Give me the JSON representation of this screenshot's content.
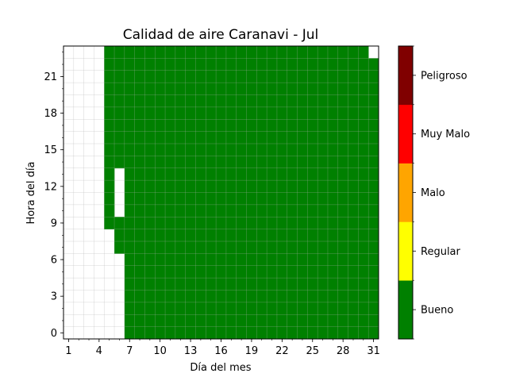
{
  "chart_data": {
    "type": "heatmap",
    "title": "Calidad de aire Caranavi - Jul",
    "xlabel": "Día del mes",
    "ylabel": "Hora del día",
    "x_range": [
      1,
      31
    ],
    "y_range": [
      0,
      23
    ],
    "x_ticks": [
      1,
      4,
      7,
      10,
      13,
      16,
      19,
      22,
      25,
      28,
      31
    ],
    "y_ticks": [
      0,
      3,
      6,
      9,
      12,
      15,
      18,
      21
    ],
    "grid": true,
    "categories": [
      "Bueno",
      "Regular",
      "Malo",
      "Muy Malo",
      "Peligroso"
    ],
    "category_colors": [
      "#008000",
      "#ffff00",
      "#ffa500",
      "#ff0000",
      "#800000"
    ],
    "default_category": "Bueno",
    "data_start_day": 5,
    "missing_cells": [
      {
        "day": 5,
        "hour_from": 0,
        "hour_to": 8
      },
      {
        "day": 6,
        "hour_from": 0,
        "hour_to": 6
      },
      {
        "day": 6,
        "hour_from": 10,
        "hour_to": 13
      },
      {
        "day": 31,
        "hour_from": 23,
        "hour_to": 23
      }
    ],
    "legend": "colorbar-right"
  }
}
